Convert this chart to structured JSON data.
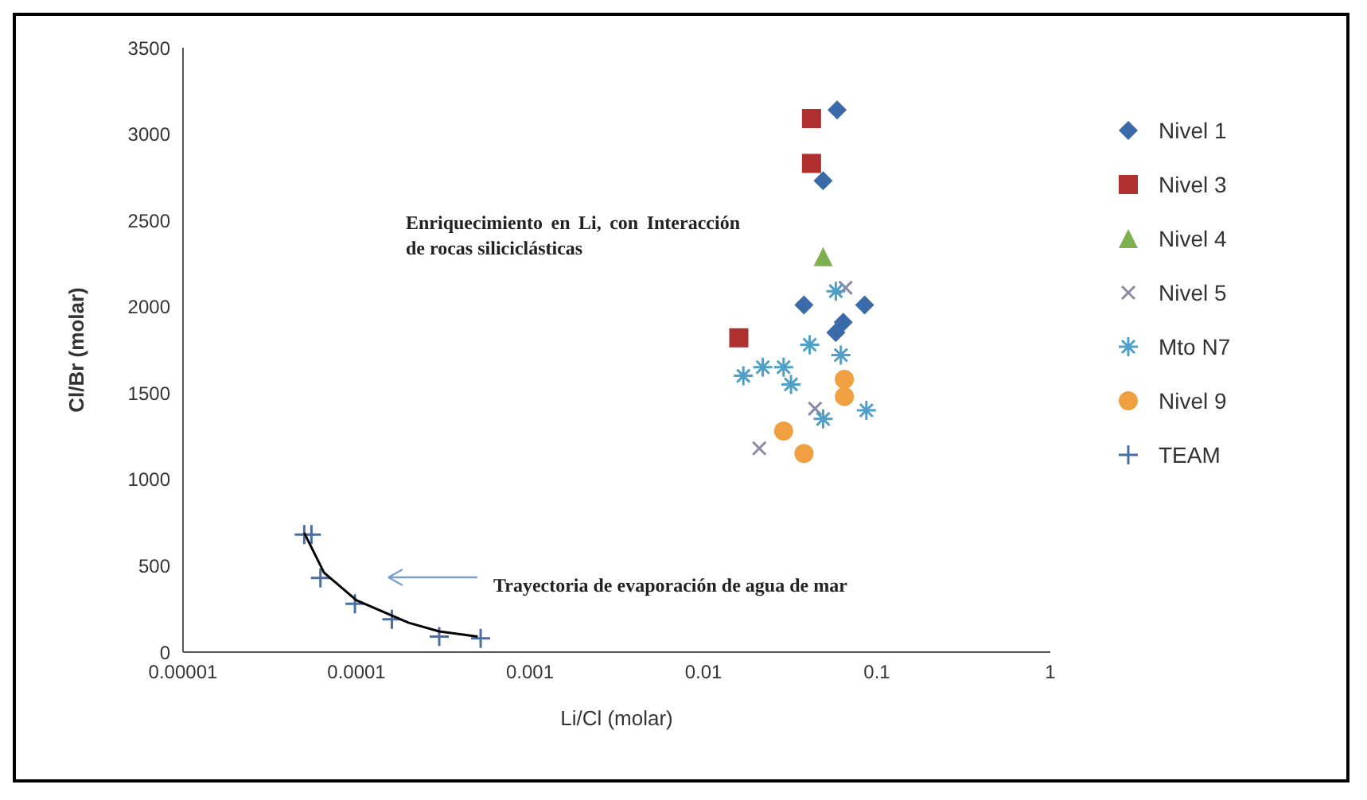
{
  "chart_data": {
    "type": "scatter",
    "xlabel": "Li/Cl (molar)",
    "ylabel": "Cl/Br (molar)",
    "log": "x",
    "xlim": [
      1e-05,
      1
    ],
    "xticks": [
      {
        "value": 1e-05,
        "label": "0.00001"
      },
      {
        "value": 0.0001,
        "label": "0.0001"
      },
      {
        "value": 0.001,
        "label": "0.001"
      },
      {
        "value": 0.01,
        "label": "0.01"
      },
      {
        "value": 0.1,
        "label": "0.1"
      },
      {
        "value": 1,
        "label": "1"
      }
    ],
    "ylim": [
      0,
      3500
    ],
    "yticks": [
      0,
      500,
      1000,
      1500,
      2000,
      2500,
      3000,
      3500
    ],
    "grid": false,
    "legend": "right",
    "annotations": [
      "Enriquecimiento en Li, con Interacción de rocas siliciclásticas",
      "Trayectoria de evaporación de agua de mar"
    ],
    "series": [
      {
        "name": "Nivel 1",
        "color": "#3a6aa8",
        "marker": "diamond",
        "x": [
          0.059,
          0.049,
          0.038,
          0.085,
          0.064,
          0.058
        ],
        "values": [
          3140,
          2730,
          2010,
          2010,
          1910,
          1850
        ]
      },
      {
        "name": "Nivel 3",
        "color": "#b03030",
        "marker": "square",
        "x": [
          0.042,
          0.042,
          0.016
        ],
        "values": [
          3090,
          2830,
          1820
        ]
      },
      {
        "name": "Nivel 4",
        "color": "#7fb04f",
        "marker": "triangle",
        "x": [
          0.049
        ],
        "values": [
          2290
        ]
      },
      {
        "name": "Nivel 5",
        "color": "#8a8aa8",
        "marker": "x",
        "x": [
          0.066,
          0.021,
          0.044
        ],
        "values": [
          2110,
          1180,
          1410
        ]
      },
      {
        "name": "Mto N7",
        "color": "#4fa0c8",
        "marker": "cross",
        "x": [
          0.058,
          0.017,
          0.022,
          0.029,
          0.032,
          0.041,
          0.062,
          0.049,
          0.087
        ],
        "values": [
          2090,
          1600,
          1650,
          1650,
          1550,
          1780,
          1720,
          1350,
          1400
        ]
      },
      {
        "name": "Nivel 9",
        "color": "#f0a040",
        "marker": "circle",
        "x": [
          0.065,
          0.065,
          0.029,
          0.038
        ],
        "values": [
          1580,
          1480,
          1280,
          1150
        ]
      },
      {
        "name": "TEAM",
        "color": "#4a6fa5",
        "marker": "plus",
        "x": [
          5e-05,
          5.5e-05,
          6.2e-05,
          9.8e-05,
          0.00016,
          0.0003,
          0.00052
        ],
        "values": [
          680,
          680,
          430,
          280,
          190,
          90,
          80
        ]
      },
      {
        "type": "line",
        "color": "#000000",
        "marker": "none",
        "x": [
          5e-05,
          6.5e-05,
          0.0001,
          0.0002,
          0.0003,
          0.0005
        ],
        "values": [
          690,
          460,
          300,
          170,
          120,
          90
        ]
      }
    ]
  }
}
